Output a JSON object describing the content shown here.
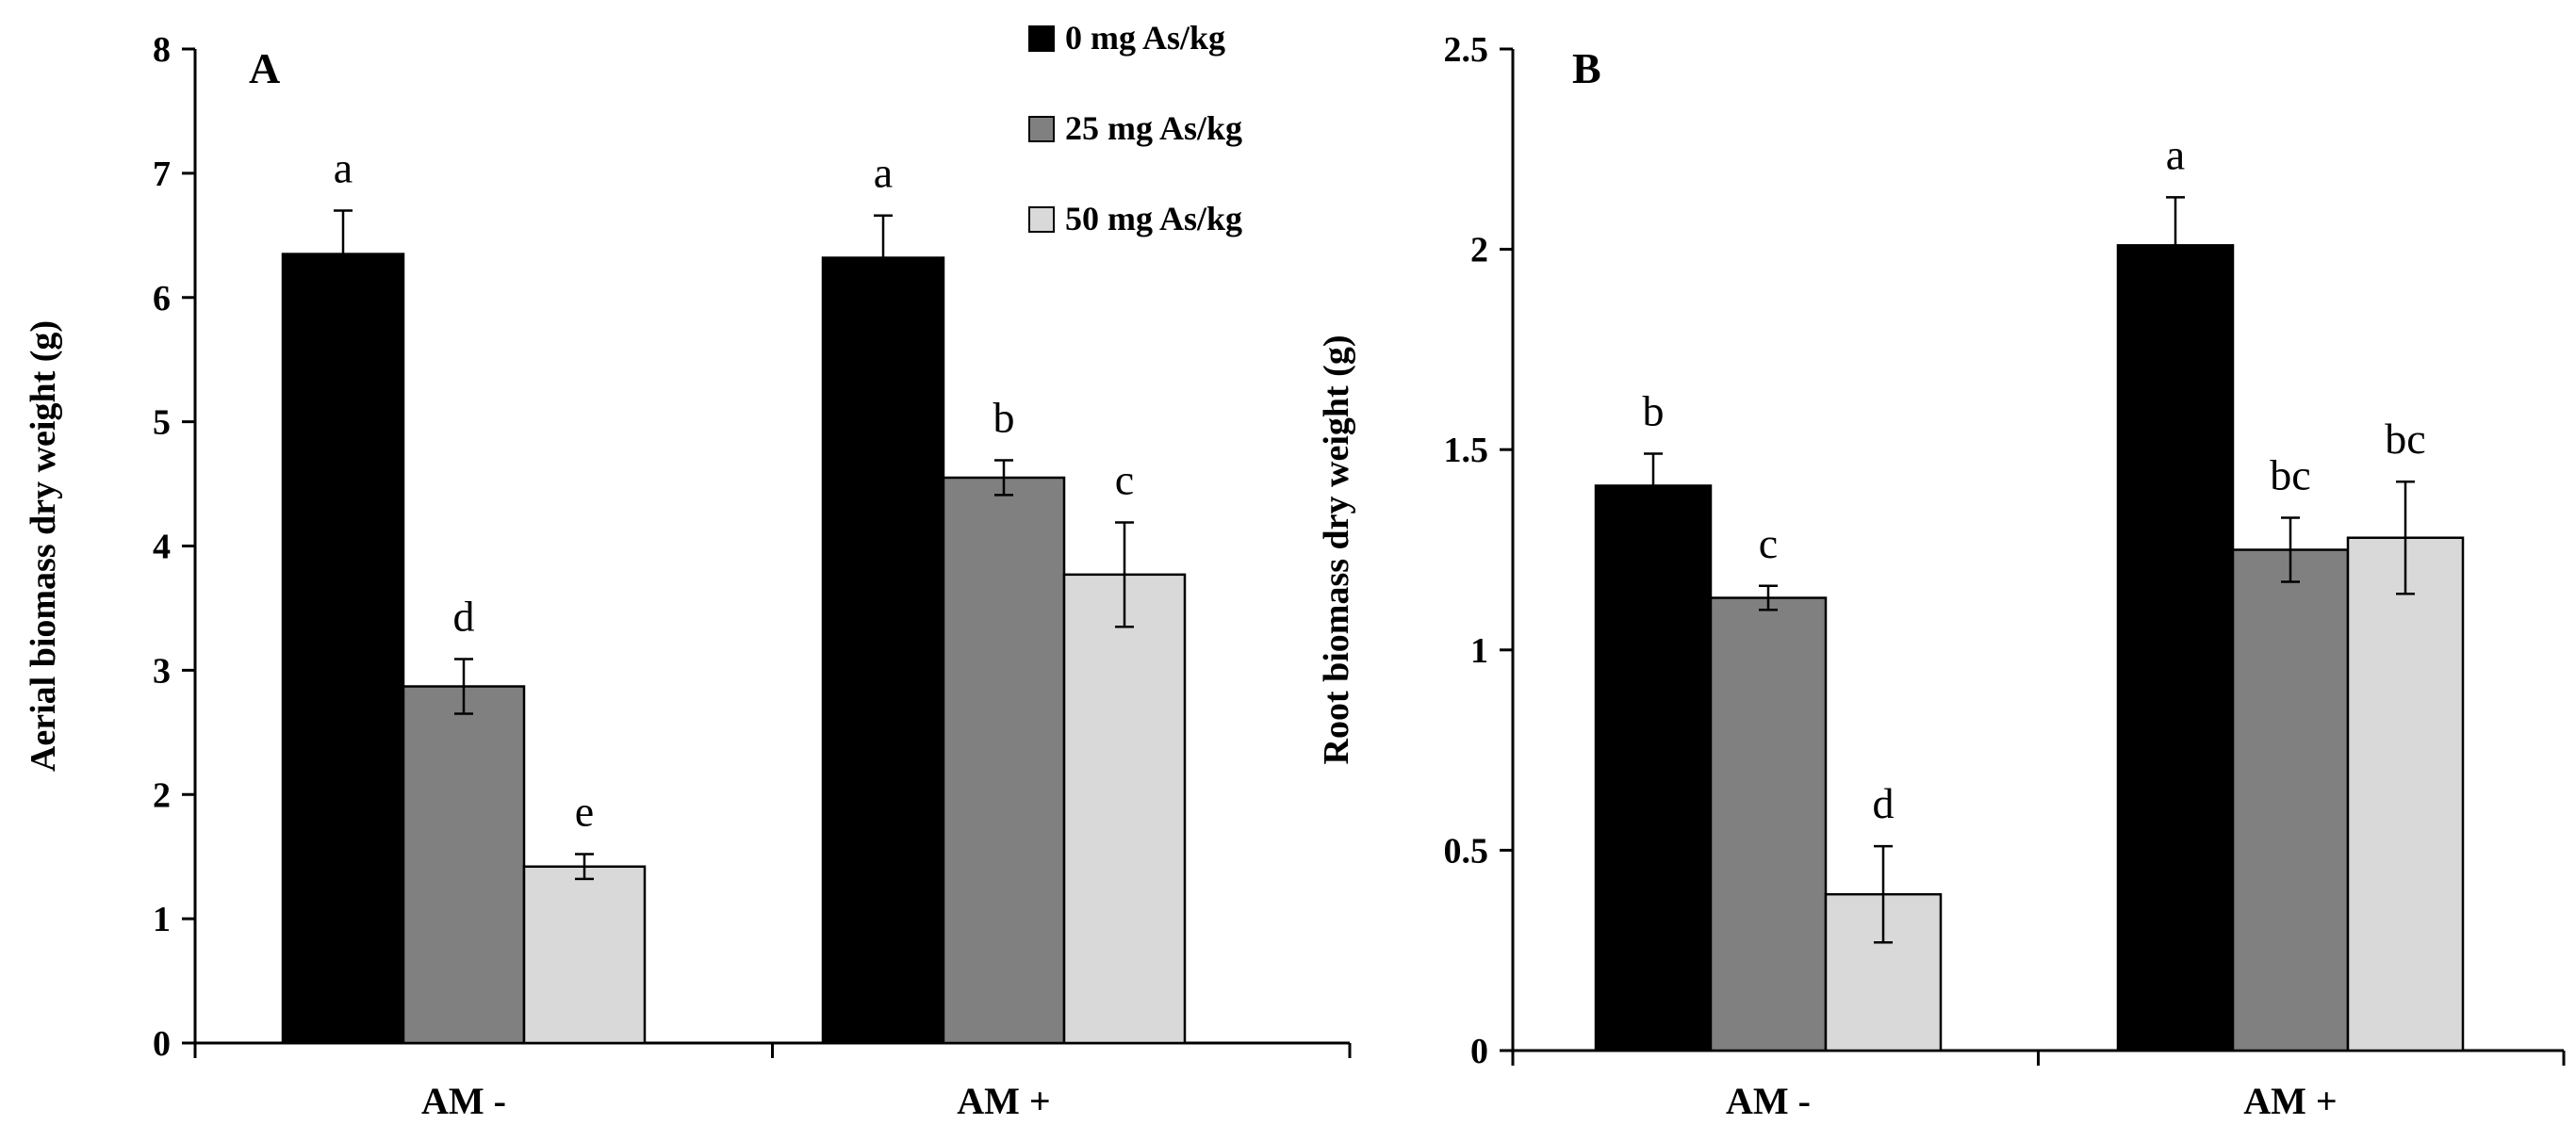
{
  "chart_data": [
    {
      "type": "bar",
      "panel": "A",
      "ylabel": "Aerial biomass dry weight (g)",
      "xlabel": "",
      "ylim": [
        0,
        8
      ],
      "yticks": [
        0,
        1,
        2,
        3,
        4,
        5,
        6,
        7,
        8
      ],
      "ytick_labels": [
        "0",
        "1",
        "2",
        "3",
        "4",
        "5",
        "6",
        "7",
        "8"
      ],
      "categories": [
        "AM -",
        "AM +"
      ],
      "legend_position": "top-right",
      "series": [
        {
          "name": "0 mg As/kg",
          "color": "#000000",
          "values": [
            6.35,
            6.32
          ],
          "errors": [
            0.35,
            0.34
          ],
          "labels": [
            "a",
            "a"
          ]
        },
        {
          "name": "25 mg As/kg",
          "color": "#808080",
          "values": [
            2.87,
            4.55
          ],
          "errors": [
            0.22,
            0.14
          ],
          "labels": [
            "d",
            "b"
          ]
        },
        {
          "name": "50 mg As/kg",
          "color": "#d9d9d9",
          "values": [
            1.42,
            3.77
          ],
          "errors": [
            0.1,
            0.42
          ],
          "labels": [
            "e",
            "c"
          ]
        }
      ]
    },
    {
      "type": "bar",
      "panel": "B",
      "ylabel": "Root biomass dry weight (g)",
      "xlabel": "",
      "ylim": [
        0,
        2.5
      ],
      "yticks": [
        0,
        0.5,
        1,
        1.5,
        2,
        2.5
      ],
      "ytick_labels": [
        "0",
        "0.5",
        "1",
        "1.5",
        "2",
        "2.5"
      ],
      "categories": [
        "AM -",
        "AM +"
      ],
      "series": [
        {
          "name": "0 mg As/kg",
          "color": "#000000",
          "values": [
            1.41,
            2.01
          ],
          "errors": [
            0.08,
            0.12
          ],
          "labels": [
            "b",
            "a"
          ]
        },
        {
          "name": "25 mg As/kg",
          "color": "#808080",
          "values": [
            1.13,
            1.25
          ],
          "errors": [
            0.03,
            0.08
          ],
          "labels": [
            "c",
            "bc"
          ]
        },
        {
          "name": "50 mg As/kg",
          "color": "#d9d9d9",
          "values": [
            0.39,
            1.28
          ],
          "errors": [
            0.12,
            0.14
          ],
          "labels": [
            "d",
            "bc"
          ]
        }
      ]
    }
  ]
}
